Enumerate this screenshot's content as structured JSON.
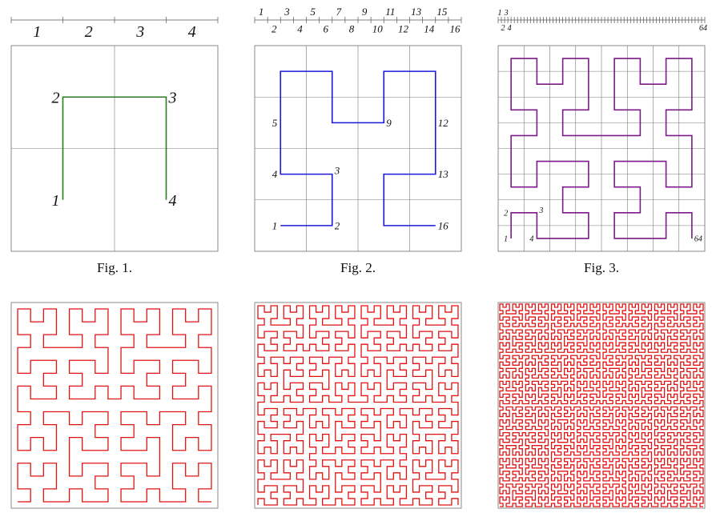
{
  "figures": [
    {
      "caption": "Fig. 1.",
      "ruler_labels": [
        "1",
        "2",
        "3",
        "4"
      ],
      "point_labels": [
        "1",
        "2",
        "3",
        "4"
      ]
    },
    {
      "caption": "Fig. 2.",
      "ruler_labels": [
        "1",
        "2",
        "3",
        "4",
        "5",
        "6",
        "7",
        "8",
        "9",
        "10",
        "11",
        "12",
        "13",
        "14",
        "15",
        "16"
      ],
      "point_labels": [
        "1",
        "2",
        "3",
        "4",
        "5",
        "9",
        "12",
        "13",
        "16"
      ]
    },
    {
      "caption": "Fig. 3.",
      "ruler_labels": [
        "1",
        "3",
        "2",
        "4",
        "64"
      ],
      "point_labels": [
        "1",
        "2",
        "3",
        "4",
        "64"
      ]
    }
  ]
}
